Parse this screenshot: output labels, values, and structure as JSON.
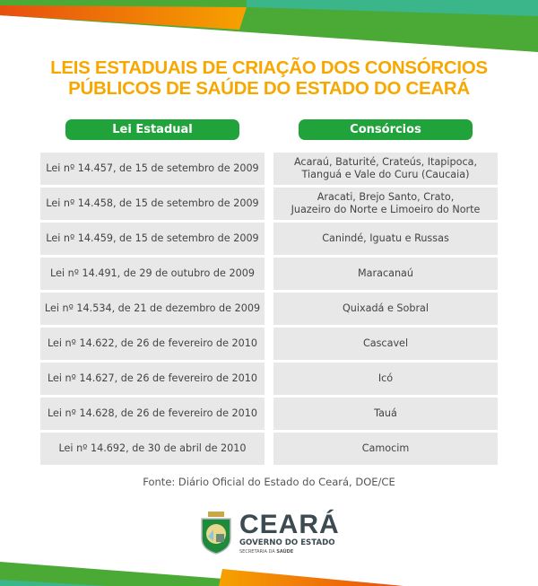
{
  "title": {
    "line1": "LEIS ESTADUAIS DE CRIAÇÃO DOS CONSÓRCIOS",
    "line2": "PÚBLICOS DE SAÚDE DO ESTADO DO CEARÁ"
  },
  "table": {
    "headers": [
      "Lei Estadual",
      "Consórcios"
    ],
    "rows": [
      {
        "lei": "Lei nº 14.457, de 15 de setembro de 2009",
        "consorcios": "Acaraú, Baturité, Crateús, Itapipoca,\nTianguá e Vale do Curu (Caucaia)"
      },
      {
        "lei": "Lei nº 14.458, de 15 de setembro de 2009",
        "consorcios": "Aracati, Brejo Santo, Crato,\nJuazeiro do Norte e Limoeiro do Norte"
      },
      {
        "lei": "Lei nº 14.459, de 15 de setembro de 2009",
        "consorcios": "Canindé, Iguatu e Russas"
      },
      {
        "lei": "Lei nº 14.491, de 29 de outubro de 2009",
        "consorcios": "Maracanaú"
      },
      {
        "lei": "Lei nº 14.534, de 21 de dezembro de 2009",
        "consorcios": "Quixadá e Sobral"
      },
      {
        "lei": "Lei nº 14.622, de 26 de fevereiro de 2010",
        "consorcios": "Cascavel"
      },
      {
        "lei": "Lei nº 14.627, de 26 de fevereiro de 2010",
        "consorcios": "Icó"
      },
      {
        "lei": "Lei nº 14.628, de 26 de fevereiro de 2010",
        "consorcios": "Tauá"
      },
      {
        "lei": "Lei nº 14.692, de 30 de abril de 2010",
        "consorcios": "Camocim"
      }
    ]
  },
  "source": "Fonte: Diário Oficial do Estado do Ceará, DOE/CE",
  "logo": {
    "name": "CEARÁ",
    "subtitle": "GOVERNO DO ESTADO",
    "dept_prefix": "SECRETARIA DA",
    "dept_bold": "SAÚDE"
  },
  "colors": {
    "title": "#f7a800",
    "header": "#1fa33a",
    "cell": "#e8e8e8",
    "green": "#4aaa35",
    "teal": "#3bb58a",
    "orange": "#f39200",
    "red_orange": "#e84e0f",
    "logo_text": "#3c4a52"
  }
}
